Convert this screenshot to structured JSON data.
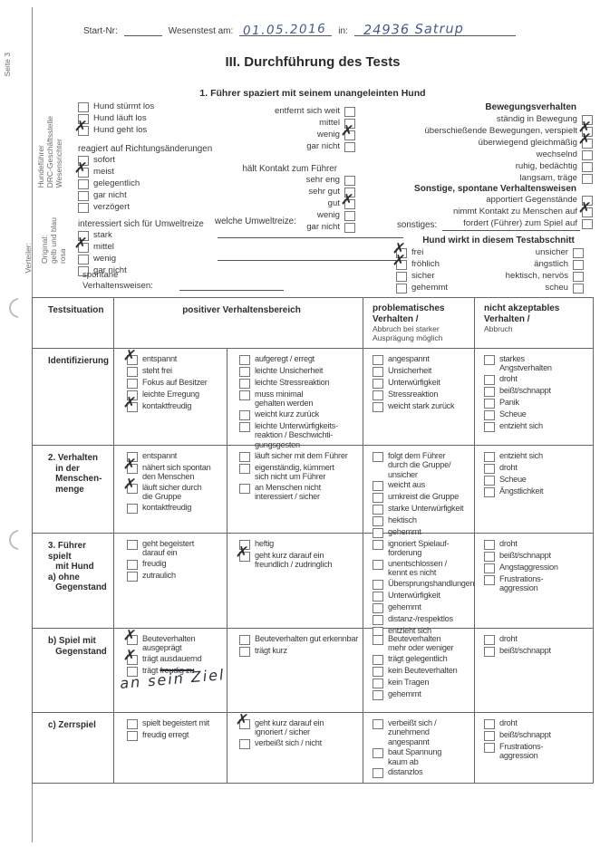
{
  "ink_colors": {
    "blue_pen": "#44598f",
    "dark_pen": "#30303a"
  },
  "page": {
    "side_label": "Seite 3",
    "distribution_label": "Verteiler:",
    "distribution_copies": "Original:\ngelb und blau\nrosa",
    "distribution_roles": "Hundeführer\nDRC-Geschäftsstelle\nWesensrichter"
  },
  "header": {
    "start_nr_label": "Start-Nr:",
    "test_date_label": "Wesenstest am:",
    "test_date_value": "01.05.2016",
    "location_label": "in:",
    "location_value": "24936 Satrup",
    "title": "III. Durchführung des Tests",
    "subtitle": "1. Führer spaziert mit seinem unangeleinten Hund"
  },
  "section1": {
    "start_items": [
      {
        "label": "Hund stürmt los"
      },
      {
        "label": "Hund läuft los"
      },
      {
        "label": "Hund geht los",
        "checked": true
      }
    ],
    "richtung": {
      "heading": "reagiert auf Richtungsänderungen",
      "items": [
        {
          "label": "sofort"
        },
        {
          "label": "meist",
          "checked": true
        },
        {
          "label": "gelegentlich"
        },
        {
          "label": "gar nicht"
        },
        {
          "label": "verzögert"
        }
      ]
    },
    "umweltreize": {
      "heading": "interessiert sich für Umweltreize",
      "items": [
        {
          "label": "stark"
        },
        {
          "label": "mittel",
          "checked": true
        },
        {
          "label": "wenig"
        },
        {
          "label": "gar nicht"
        }
      ]
    },
    "spontane_label": "spontane\nVerhaltensweisen:",
    "entfernt_items": [
      {
        "label": "entfernt sich weit"
      },
      {
        "label": "mittel"
      },
      {
        "label": "wenig",
        "checked": true
      },
      {
        "label": "gar nicht"
      }
    ],
    "kontakt": {
      "heading": "hält Kontakt zum Führer",
      "items": [
        {
          "label": "sehr eng"
        },
        {
          "label": "sehr gut"
        },
        {
          "label": "gut",
          "checked": true
        },
        {
          "label": "wenig"
        },
        {
          "label": "gar nicht"
        }
      ]
    },
    "welche_umweltreize_label": "welche Umweltreize:",
    "bewegung": {
      "heading": "Bewegungsverhalten",
      "items": [
        {
          "label": "ständig in Bewegung"
        },
        {
          "label": "überschießende Bewegungen, verspielt",
          "checked": true
        },
        {
          "label": "überwiegend gleichmäßig",
          "checked": true
        },
        {
          "label": "wechselnd"
        },
        {
          "label": "ruhig, bedächtig"
        },
        {
          "label": "langsam, träge"
        }
      ]
    },
    "sonstige": {
      "heading": "Sonstige, spontane Verhaltensweisen",
      "items": [
        {
          "label": "apportiert Gegenstände"
        },
        {
          "label": "nimmt Kontakt zu Menschen auf",
          "checked": true
        },
        {
          "label": "fordert (Führer) zum Spiel auf"
        }
      ]
    },
    "sonstiges_label": "sonstiges:",
    "wirkt": {
      "heading": "Hund wirkt in diesem Testabschnitt",
      "left_items": [
        {
          "label": "frei",
          "checked": true
        },
        {
          "label": "fröhlich",
          "checked": true
        },
        {
          "label": "sicher"
        },
        {
          "label": "gehemmt"
        }
      ],
      "right_items": [
        {
          "label": "unsicher"
        },
        {
          "label": "ängstlich"
        },
        {
          "label": "hektisch, nervös"
        },
        {
          "label": "scheu"
        }
      ]
    }
  },
  "table": {
    "headers": {
      "situation": "Testsituation",
      "positive": "positiver Verhaltensbereich",
      "problematic": "problematisches\nVerhalten /",
      "problematic_note": "Abbruch bei starker\nAusprägung möglich",
      "unacceptable": "nicht akzeptables\nVerhalten /",
      "unacceptable_note": "Abbruch"
    },
    "rows": [
      {
        "situation": "Identifizierung",
        "pos1": [
          {
            "label": "entspannt",
            "checked": true
          },
          {
            "label": "steht frei"
          },
          {
            "label": "Fokus auf Besitzer"
          },
          {
            "label": "leichte Erregung"
          },
          {
            "label": "kontaktfreudig",
            "checked": true
          }
        ],
        "pos2": [
          {
            "label": "aufgeregt / erregt"
          },
          {
            "label": "leichte Unsicherheit"
          },
          {
            "label": "leichte Stressreaktion"
          },
          {
            "label": "muss minimal\ngehalten werden"
          },
          {
            "label": "weicht kurz zurück"
          },
          {
            "label": "leichte Unterwürfigkeits-\nreaktion / Beschwichti-\ngungsgesten"
          }
        ],
        "prob": [
          {
            "label": "angespannt"
          },
          {
            "label": "Unsicherheit"
          },
          {
            "label": "Unterwürfigkeit"
          },
          {
            "label": "Stressreaktion"
          },
          {
            "label": "weicht stark zurück"
          }
        ],
        "na": [
          {
            "label": "starkes\nAngstverhalten"
          },
          {
            "label": "droht"
          },
          {
            "label": "beißt/schnappt"
          },
          {
            "label": "Panik"
          },
          {
            "label": "Scheue"
          },
          {
            "label": "entzieht sich"
          }
        ]
      },
      {
        "situation": "2. Verhalten\n   in der\n   Menschen-\n   menge",
        "pos1": [
          {
            "label": "entspannt"
          },
          {
            "label": "nähert sich spontan\nden Menschen",
            "checked": true
          },
          {
            "label": "läuft sicher durch\ndie Gruppe",
            "checked": true
          },
          {
            "label": "kontaktfreudig"
          }
        ],
        "pos2": [
          {
            "label": "läuft sicher mit dem Führer"
          },
          {
            "label": "eigenständig, kümmert\nsich nicht um Führer"
          },
          {
            "label": "an Menschen nicht\ninteressiert / sicher"
          }
        ],
        "prob": [
          {
            "label": "folgt dem Führer\ndurch die Gruppe/\nunsicher"
          },
          {
            "label": "weicht aus"
          },
          {
            "label": "umkreist die Gruppe"
          },
          {
            "label": "starke Unterwürfigkeit"
          },
          {
            "label": "hektisch"
          },
          {
            "label": "gehemmt"
          }
        ],
        "na": [
          {
            "label": "entzieht sich"
          },
          {
            "label": "droht"
          },
          {
            "label": "Scheue"
          },
          {
            "label": "Ängstlichkeit"
          }
        ]
      },
      {
        "situation": "3. Führer spielt\n   mit Hund\na) ohne\n   Gegenstand",
        "pos1": [
          {
            "label": "geht begeistert\ndarauf ein"
          },
          {
            "label": "freudig"
          },
          {
            "label": "zutraulich"
          }
        ],
        "pos2": [
          {
            "label": "heftig"
          },
          {
            "label": "geht kurz darauf ein\nfreundlich / zudringlich",
            "checked": true
          }
        ],
        "prob": [
          {
            "label": "ignoriert Spielauf-\nforderung"
          },
          {
            "label": "unentschlossen /\nkennt es nicht"
          },
          {
            "label": "Übersprungshandlungen"
          },
          {
            "label": "Unterwürfigkeit"
          },
          {
            "label": "gehemmt"
          },
          {
            "label": "distanz-/respektlos"
          },
          {
            "label": "entzieht sich"
          }
        ],
        "na": [
          {
            "label": "droht"
          },
          {
            "label": "beißt/schnappt"
          },
          {
            "label": "Angstaggression"
          },
          {
            "label": "Frustrations-\naggression"
          }
        ]
      },
      {
        "situation": "b) Spiel mit\n   Gegenstand",
        "pos1": [
          {
            "label": "Beuteverhalten\nausgeprägt",
            "checked": true
          },
          {
            "label": "trägt ausdauernd",
            "checked": true
          },
          {
            "label": "trägt ",
            "struck": "freudig zu"
          }
        ],
        "pos2": [
          {
            "label": "Beuteverhalten gut erkennbar"
          },
          {
            "label": "trägt kurz"
          }
        ],
        "prob": [
          {
            "label": "Beuteverhalten\nmehr oder weniger"
          },
          {
            "label": "trägt gelegentlich"
          },
          {
            "label": "kein Beuteverhalten"
          },
          {
            "label": "kein Tragen"
          },
          {
            "label": "gehemmt"
          }
        ],
        "na": [
          {
            "label": "droht"
          },
          {
            "label": "beißt/schnappt"
          }
        ]
      },
      {
        "situation": "c) Zerrspiel",
        "pos1": [
          {
            "label": "spielt begeistert mit"
          },
          {
            "label": "freudig erregt"
          }
        ],
        "pos2": [
          {
            "label": "geht kurz darauf ein\nignoriert / sicher",
            "checked": true
          },
          {
            "label": "verbeißt sich / nicht"
          }
        ],
        "prob": [
          {
            "label": "verbeißt sich /\nzunehmend angespannt"
          },
          {
            "label": "baut Spannung\nkaum ab"
          },
          {
            "label": "distanzlos"
          }
        ],
        "na": [
          {
            "label": "droht"
          },
          {
            "label": "beißt/schnappt"
          },
          {
            "label": "Frustrations-\naggression"
          }
        ]
      }
    ]
  },
  "handwriting": {
    "ziel_note": "an sein Ziel"
  }
}
